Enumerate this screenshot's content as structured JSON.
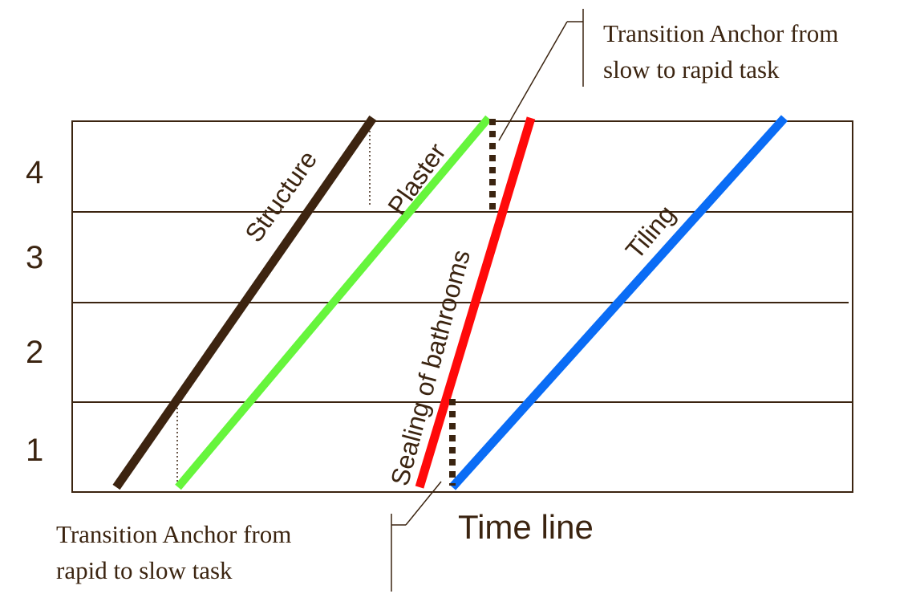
{
  "floors": [
    "1",
    "2",
    "3",
    "4"
  ],
  "axis_label": "Time line",
  "tasks": [
    {
      "name": "Structure",
      "color": "#3d2410"
    },
    {
      "name": "Plaster",
      "color": "#66f53c"
    },
    {
      "name": "Sealing of bathrooms",
      "color": "#ff0a0a"
    },
    {
      "name": "Tiling",
      "color": "#0a6cf5"
    }
  ],
  "annotations": {
    "slow_to_rapid": {
      "line1": "Transition Anchor from",
      "line2": "slow to rapid task"
    },
    "rapid_to_slow": {
      "line1": "Transition Anchor from",
      "line2": "rapid to slow task"
    }
  },
  "colors": {
    "ink": "#3b2410",
    "grid": "#3b2410",
    "anchor": "#3b2410"
  }
}
